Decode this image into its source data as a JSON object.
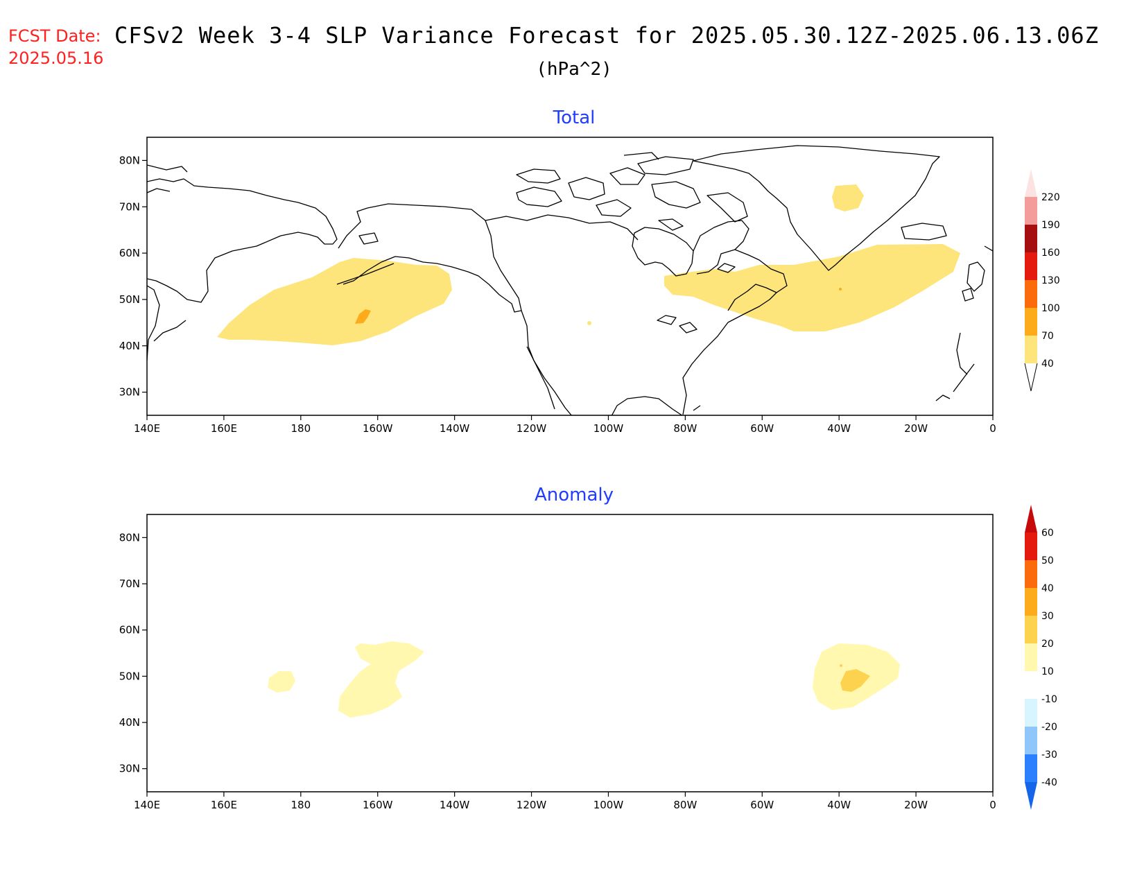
{
  "header": {
    "fcst_label": "FCST Date:",
    "fcst_date": "2025.05.16",
    "title": "CFSv2 Week 3-4 SLP Variance Forecast for 2025.05.30.12Z-2025.06.13.06Z",
    "units": "(hPa^2)"
  },
  "axes": {
    "lon_ticks": [
      "140E",
      "160E",
      "180",
      "160W",
      "140W",
      "120W",
      "100W",
      "80W",
      "60W",
      "40W",
      "20W",
      "0"
    ],
    "lat_ticks": [
      "80N",
      "70N",
      "60N",
      "50N",
      "40N",
      "30N"
    ],
    "lon_range": [
      140,
      360
    ],
    "lat_range": [
      25,
      85
    ]
  },
  "panels": [
    {
      "title": "Total",
      "colorbar": {
        "levels": [
          "40",
          "70",
          "100",
          "130",
          "160",
          "190",
          "220"
        ],
        "colors": [
          "#fde57c",
          "#fdab1a",
          "#fb6a0b",
          "#e41a0f",
          "#a50f0f",
          "#f49c9c",
          "#fde2e2"
        ]
      }
    },
    {
      "title": "Anomaly",
      "colorbar": {
        "levels": [
          "-40",
          "-30",
          "-20",
          "-10",
          "10",
          "20",
          "30",
          "40",
          "50",
          "60"
        ],
        "colors": [
          "#1565e8",
          "#2b80ff",
          "#8fc7fb",
          "#d6f5ff",
          "#ffffff",
          "#fff8ae",
          "#fdd24e",
          "#fdab1a",
          "#fb6a0b",
          "#e41a0f",
          "#c60a0a"
        ]
      }
    }
  ],
  "chart_data": [
    {
      "type": "heatmap",
      "title": "Total",
      "units": "hPa^2",
      "levels": [
        40,
        70,
        100,
        130,
        160,
        190,
        220
      ],
      "features": [
        {
          "region": "North Pacific (approx 170E-145W, 42-58N)",
          "category": "40-70"
        },
        {
          "region": "near 164W, 46N",
          "category": "70-100"
        },
        {
          "region": "North Atlantic (approx 85W-10W, 43-63N)",
          "category": "40-70"
        },
        {
          "region": "Greenland interior (approx 37W, 73N)",
          "category": "40-70"
        }
      ]
    },
    {
      "type": "heatmap",
      "title": "Anomaly",
      "units": "hPa^2",
      "levels": [
        -40,
        -30,
        -20,
        -10,
        10,
        20,
        30,
        40,
        50,
        60
      ],
      "features": [
        {
          "region": "North Pacific (approx 170W-150W, 42-57N)",
          "category": "10-20"
        },
        {
          "region": "near 172E, 48N",
          "category": "10-20"
        },
        {
          "region": "North Atlantic (approx 45W-25W, 43-57N)",
          "category": "10-20"
        },
        {
          "region": "near 38W, 49N",
          "category": "20-30"
        }
      ]
    }
  ]
}
